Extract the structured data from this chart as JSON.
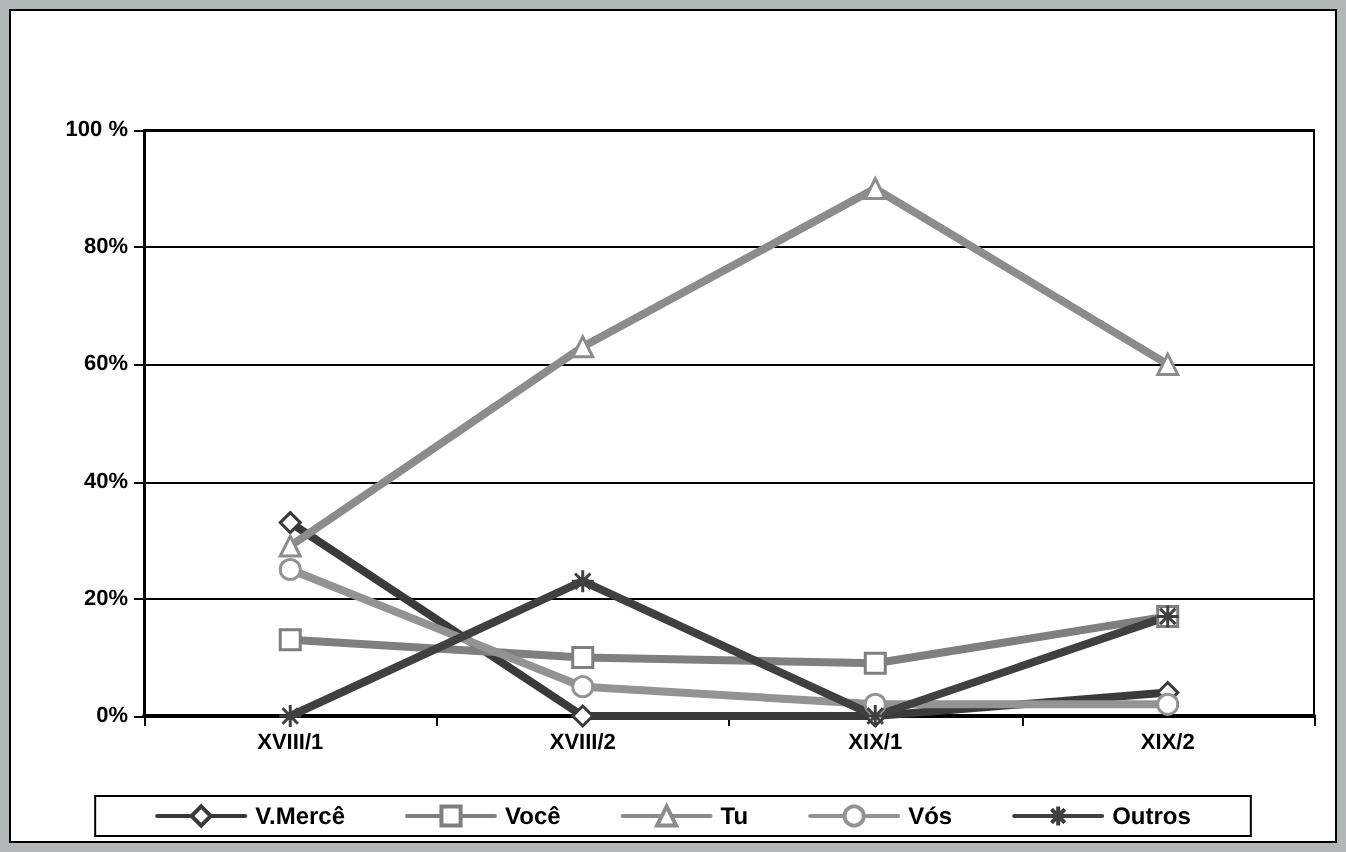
{
  "chart_data": {
    "type": "line",
    "categories": [
      "XVIII/1",
      "XVIII/2",
      "XIX/1",
      "XIX/2"
    ],
    "series": [
      {
        "name": "V.Mercê",
        "color": "#3a3a3a",
        "marker": "diamond",
        "values": [
          33,
          0,
          0,
          4
        ]
      },
      {
        "name": "Você",
        "color": "#7f7f7f",
        "marker": "square",
        "values": [
          13,
          10,
          9,
          17
        ]
      },
      {
        "name": "Tu",
        "color": "#8c8c8c",
        "marker": "triangle",
        "values": [
          29,
          63,
          90,
          60
        ]
      },
      {
        "name": "Vós",
        "color": "#939393",
        "marker": "circle",
        "values": [
          25,
          5,
          2,
          2
        ]
      },
      {
        "name": "Outros",
        "color": "#404040",
        "marker": "cross",
        "values": [
          0,
          23,
          0,
          17
        ]
      }
    ],
    "ylim": [
      0,
      100
    ],
    "yticks": [
      {
        "value": 0,
        "label": "0%"
      },
      {
        "value": 20,
        "label": "20%"
      },
      {
        "value": 40,
        "label": "40%"
      },
      {
        "value": 60,
        "label": "60%"
      },
      {
        "value": 80,
        "label": "80%"
      },
      {
        "value": 100,
        "label": "100 %"
      }
    ],
    "grid": "y",
    "legend": "bottom",
    "line_style": "solid"
  }
}
